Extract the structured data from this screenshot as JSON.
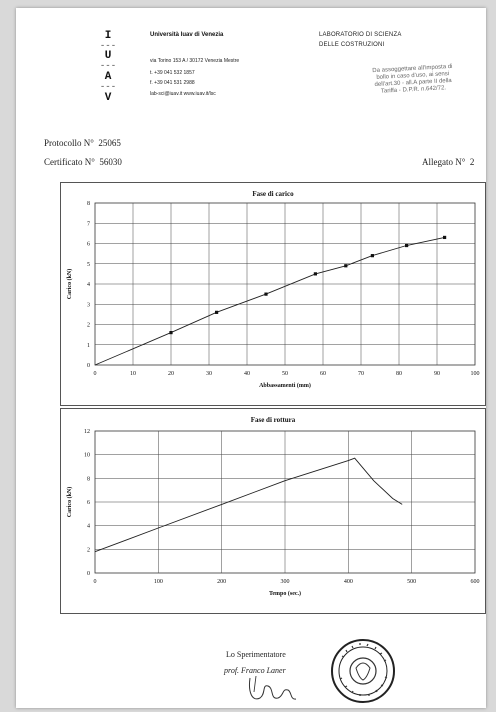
{
  "header": {
    "logo_letters": [
      "I",
      "U",
      "A",
      "V"
    ],
    "university": "Università Iuav di Venezia",
    "address": "via Torino 153 A / 30172 Venezia Mestre",
    "phone": "t. +39 041 532 1857",
    "fax": "f. +39 041 531 2988",
    "email_web": "lab-sci@iuav.it   www.iuav.it/lsc",
    "lab_line1": "LABORATORIO DI SCIENZA",
    "lab_line2": "DELLE COSTRUZIONI",
    "stamp_note": "Da assoggettare all'imposta di\nbollo in caso d'uso, ai sensi\ndell'art.30 - all.A parte II della\nTariffa - D.P.R. n.642/72."
  },
  "meta": {
    "protocollo_label": "Protocollo N°",
    "protocollo_value": "25065",
    "certificato_label": "Certificato N°",
    "certificato_value": "56030",
    "allegato_label": "Allegato N°",
    "allegato_value": "2"
  },
  "chart_data": [
    {
      "type": "line",
      "title": "Fase di carico",
      "xlabel": "Abbassamenti (mm)",
      "ylabel": "Carico (kN)",
      "xlim": [
        0,
        100
      ],
      "ylim": [
        0,
        8
      ],
      "xticks": [
        0,
        10,
        20,
        30,
        40,
        50,
        60,
        70,
        80,
        90,
        100
      ],
      "yticks": [
        0,
        1,
        2,
        3,
        4,
        5,
        6,
        7,
        8
      ],
      "grid": true,
      "x": [
        0,
        20,
        32,
        45,
        58,
        66,
        73,
        82,
        92
      ],
      "y": [
        0,
        1.6,
        2.6,
        3.5,
        4.5,
        4.9,
        5.4,
        5.9,
        6.3
      ],
      "markers": true
    },
    {
      "type": "line",
      "title": "Fase di rottura",
      "xlabel": "Tempo (sec.)",
      "ylabel": "Carico (kN)",
      "xlim": [
        0,
        600
      ],
      "ylim": [
        0,
        12
      ],
      "xticks": [
        0,
        100,
        200,
        300,
        400,
        500,
        600
      ],
      "yticks": [
        0,
        2,
        4,
        6,
        8,
        10,
        12
      ],
      "grid": true,
      "x": [
        0,
        100,
        200,
        300,
        400,
        410,
        440,
        470,
        485
      ],
      "y": [
        1.8,
        3.8,
        5.8,
        7.8,
        9.5,
        9.7,
        7.8,
        6.3,
        5.8
      ],
      "markers": false
    }
  ],
  "signature": {
    "title": "Lo Sperimentatore",
    "name": "prof. Franco Laner",
    "seal_text": "Università Iuav di Venezia • Laboratorio Scienza Costruzioni"
  }
}
